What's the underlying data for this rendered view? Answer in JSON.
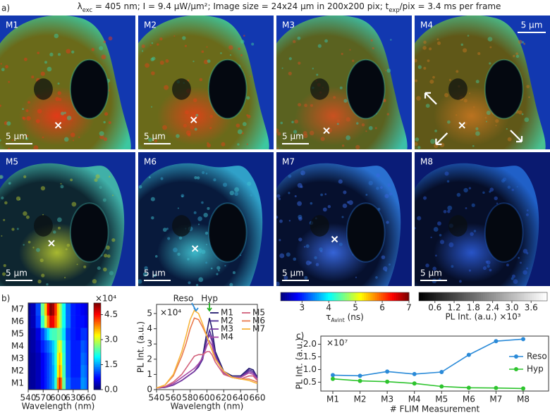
{
  "header": {
    "panel_label": "a)",
    "parts": [
      {
        "text": "λ"
      },
      {
        "sub": "exc"
      },
      {
        "text": " = 405 nm;  I = 9.4 μW/μm²; Image size = 24x24 μm in 200x200 pix;  t"
      },
      {
        "sub": "exp"
      },
      {
        "text": "/pix = 3.4 ms per frame"
      }
    ]
  },
  "images": {
    "labels": [
      "M1",
      "M2",
      "M3",
      "M4",
      "M5",
      "M6",
      "M7",
      "M8"
    ],
    "scale_bar": "5 μm",
    "lifetime_colorbar": {
      "parts": [
        {
          "text": "τ"
        },
        {
          "sub": "Avint"
        },
        {
          "text": " (ns)"
        }
      ],
      "lim": [
        2.2,
        7
      ],
      "ticks": [
        3,
        4,
        5,
        6,
        7
      ]
    },
    "intensity_colorbar": {
      "label": "PL Int. (a.u.) ×10³",
      "lim": [
        0.1,
        4.1
      ],
      "ticks": [
        0.6,
        1.2,
        1.8,
        2.4,
        {
          "value": 3,
          "label": "3.0"
        },
        3.6
      ]
    }
  },
  "panel_b_label": "b)",
  "panel_c_label": "c)",
  "chart_data": [
    {
      "type": "heatmap",
      "categories": [
        "M1",
        "M2",
        "M3",
        "M4",
        "M5",
        "M6",
        "M7"
      ],
      "x": [
        540,
        550,
        560,
        570,
        575,
        580,
        585,
        590,
        595,
        600,
        603,
        606,
        610,
        620,
        630,
        640,
        650,
        655,
        660
      ],
      "z": [
        [
          0.1,
          0.15,
          0.3,
          0.6,
          0.8,
          1.0,
          1.2,
          1.5,
          2.2,
          3.8,
          4.7,
          4.0,
          2.5,
          1.2,
          0.9,
          0.9,
          1.4,
          1.3,
          0.8
        ],
        [
          0.1,
          0.15,
          0.3,
          0.6,
          0.8,
          1.0,
          1.2,
          1.5,
          2.0,
          3.3,
          3.9,
          3.4,
          2.3,
          1.1,
          0.8,
          0.8,
          1.3,
          1.2,
          0.8
        ],
        [
          0.1,
          0.15,
          0.3,
          0.6,
          0.8,
          1.0,
          1.2,
          1.6,
          2.1,
          3.2,
          3.6,
          3.2,
          2.2,
          1.1,
          0.8,
          0.8,
          1.2,
          1.1,
          0.7
        ],
        [
          0.1,
          0.2,
          0.4,
          0.8,
          1.0,
          1.2,
          1.4,
          1.7,
          2.1,
          2.9,
          3.2,
          2.9,
          2.1,
          1.1,
          0.8,
          0.8,
          1.1,
          1.0,
          0.7
        ],
        [
          0.1,
          0.2,
          0.5,
          1.0,
          1.4,
          1.8,
          2.2,
          2.3,
          2.3,
          2.5,
          2.5,
          2.3,
          1.8,
          1.0,
          0.8,
          0.7,
          0.9,
          0.9,
          0.6
        ],
        [
          0.1,
          0.3,
          0.9,
          2.2,
          3.0,
          4.0,
          4.7,
          4.6,
          4.1,
          3.5,
          3.0,
          2.6,
          2.0,
          1.2,
          0.8,
          0.7,
          0.7,
          0.6,
          0.5
        ],
        [
          0.1,
          0.3,
          1.0,
          2.5,
          3.5,
          4.6,
          5.2,
          5.0,
          4.3,
          3.5,
          3.0,
          2.6,
          2.0,
          1.2,
          0.8,
          0.7,
          0.6,
          0.5,
          0.4
        ]
      ],
      "xlim": [
        540,
        660
      ],
      "xticks": [
        540,
        570,
        600,
        630,
        660
      ],
      "x_label": "Wavelength (nm)",
      "colorbar_lim": [
        0,
        5.2
      ],
      "colorbar_ticks": [
        {
          "value": 0,
          "label": "0.0"
        },
        1.5,
        {
          "value": 3,
          "label": "3.0"
        },
        4.5
      ],
      "colorbar_label": "×10⁴"
    },
    {
      "type": "line",
      "x": [
        540,
        550,
        560,
        570,
        575,
        580,
        585,
        590,
        595,
        600,
        603,
        606,
        610,
        620,
        630,
        640,
        650,
        655,
        660
      ],
      "series": [
        {
          "name": "M1",
          "color": "#22196e",
          "values": [
            0.1,
            0.15,
            0.3,
            0.6,
            0.8,
            1.0,
            1.2,
            1.5,
            2.2,
            3.8,
            4.7,
            4.0,
            2.5,
            1.2,
            0.9,
            0.9,
            1.4,
            1.3,
            0.8
          ]
        },
        {
          "name": "M2",
          "color": "#4b2a96",
          "values": [
            0.1,
            0.15,
            0.3,
            0.6,
            0.8,
            1.0,
            1.2,
            1.5,
            2.0,
            3.3,
            3.9,
            3.4,
            2.3,
            1.1,
            0.8,
            0.8,
            1.3,
            1.2,
            0.8
          ]
        },
        {
          "name": "M3",
          "color": "#7a3aa2",
          "values": [
            0.1,
            0.15,
            0.3,
            0.6,
            0.8,
            1.0,
            1.2,
            1.6,
            2.1,
            3.2,
            3.6,
            3.2,
            2.2,
            1.1,
            0.8,
            0.8,
            1.2,
            1.1,
            0.7
          ]
        },
        {
          "name": "M4",
          "color": "#a64aa6",
          "values": [
            0.1,
            0.2,
            0.4,
            0.8,
            1.0,
            1.2,
            1.4,
            1.7,
            2.1,
            2.9,
            3.2,
            2.9,
            2.1,
            1.1,
            0.8,
            0.8,
            1.1,
            1.0,
            0.7
          ]
        },
        {
          "name": "M5",
          "color": "#d2607a",
          "values": [
            0.1,
            0.2,
            0.5,
            1.0,
            1.4,
            1.8,
            2.2,
            2.3,
            2.3,
            2.5,
            2.5,
            2.3,
            1.8,
            1.0,
            0.8,
            0.7,
            0.9,
            0.9,
            0.6
          ]
        },
        {
          "name": "M6",
          "color": "#ea7a4e",
          "values": [
            0.1,
            0.3,
            0.9,
            2.2,
            3.0,
            4.0,
            4.7,
            4.6,
            4.1,
            3.5,
            3.0,
            2.6,
            2.0,
            1.2,
            0.8,
            0.7,
            0.7,
            0.6,
            0.5
          ]
        },
        {
          "name": "M7",
          "color": "#f8b53a",
          "values": [
            0.1,
            0.3,
            1.0,
            2.5,
            3.5,
            4.6,
            5.2,
            5.0,
            4.3,
            3.5,
            3.0,
            2.6,
            2.0,
            1.2,
            0.8,
            0.7,
            0.6,
            0.5,
            0.4
          ]
        }
      ],
      "xlim": [
        540,
        660
      ],
      "xticks": [
        540,
        560,
        580,
        600,
        620,
        640,
        660
      ],
      "ylim": [
        0,
        5.6
      ],
      "yticks": [
        0,
        1,
        2,
        3,
        4,
        5
      ],
      "x_label": "Wavelength (nm)",
      "y_label": "PL Int. (a.u.)",
      "y_scale_label": "×10⁴",
      "annotations": [
        {
          "text": "Reso",
          "x": 587,
          "color": "#2a8ad8"
        },
        {
          "text": "Hyp",
          "x": 603,
          "color": "#22b022"
        }
      ]
    },
    {
      "type": "line",
      "categories": [
        "M1",
        "M2",
        "M3",
        "M4",
        "M5",
        "M6",
        "M7",
        "M8"
      ],
      "series": [
        {
          "name": "Reso",
          "color": "#2a8ad8",
          "values": [
            0.78,
            0.75,
            0.92,
            0.82,
            0.9,
            1.58,
            2.12,
            2.2
          ]
        },
        {
          "name": "Hyp",
          "color": "#2ec42e",
          "values": [
            0.63,
            0.55,
            0.52,
            0.45,
            0.33,
            0.28,
            0.27,
            0.25
          ]
        }
      ],
      "ylim": [
        0.15,
        2.32
      ],
      "yticks": [
        0.5,
        {
          "value": 1,
          "label": "1.0"
        },
        1.5,
        {
          "value": 2,
          "label": "2.0"
        }
      ],
      "x_label": "# FLIM Measurement",
      "y_label": "PL Int. (a.u.)",
      "y_scale_label": "×10⁷",
      "legend": "right"
    }
  ]
}
